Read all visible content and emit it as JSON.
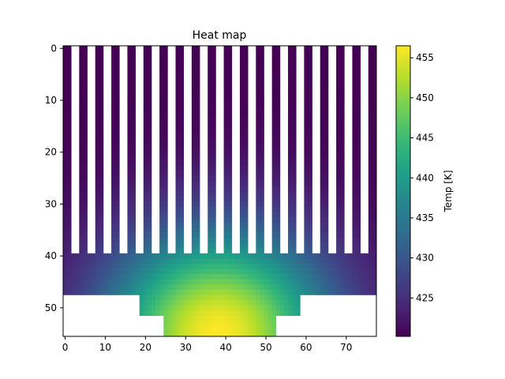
{
  "chart_data": {
    "type": "heatmap",
    "title": "Heat map",
    "xlabel": "",
    "ylabel": "",
    "colorbar_label": "Temp [K]",
    "colormap": "viridis",
    "grid": false,
    "legend": "none",
    "n_cols": 78,
    "n_rows": 56,
    "xlim": [
      -0.5,
      77.5
    ],
    "ylim": [
      55.5,
      -0.5
    ],
    "x_ticks": [
      0,
      10,
      20,
      30,
      40,
      50,
      60,
      70
    ],
    "y_ticks": [
      0,
      10,
      20,
      30,
      40,
      50
    ],
    "x_tick_labels": [
      "0",
      "10",
      "20",
      "30",
      "40",
      "50",
      "60",
      "70"
    ],
    "y_tick_labels": [
      "0",
      "10",
      "20",
      "30",
      "40",
      "50"
    ],
    "value_range": [
      420.2,
      456.5
    ],
    "colorbar_ticks": [
      425,
      430,
      435,
      440,
      445,
      450,
      455
    ],
    "colorbar_tick_labels": [
      "425",
      "430",
      "435",
      "440",
      "445",
      "450",
      "455"
    ],
    "regions": {
      "fins": {
        "rows": [
          0,
          39
        ],
        "fin_count": 20,
        "fin_width": 2,
        "gap_width": 2,
        "first_fin_col": 0
      },
      "base_plate": {
        "rows": [
          40,
          47
        ],
        "cols": [
          0,
          77
        ]
      },
      "mid_block": {
        "rows": [
          48,
          51
        ],
        "cols": [
          19,
          58
        ]
      },
      "heat_source": {
        "rows": [
          52,
          55
        ],
        "cols": [
          25,
          52
        ]
      }
    },
    "hotspot": {
      "row": 55,
      "col": 38,
      "temp": 456.5
    },
    "ambient_temp": 420.2
  }
}
